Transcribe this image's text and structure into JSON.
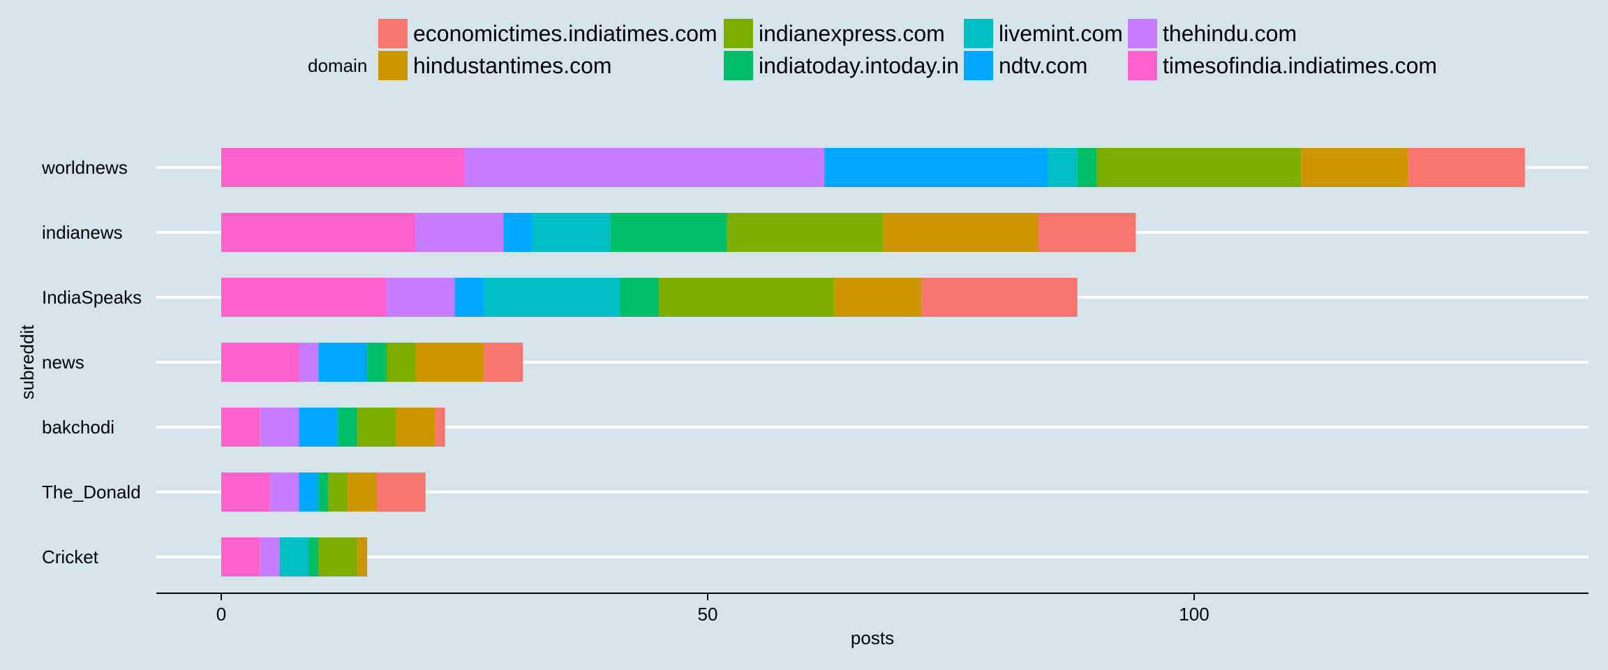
{
  "chart_data": {
    "type": "bar",
    "orientation": "horizontal",
    "stacked": true,
    "xlabel": "posts",
    "ylabel": "subreddit",
    "xlim": [
      -6.6,
      140.4
    ],
    "xticks": [
      0,
      50,
      100
    ],
    "grid": "horizontal major lines",
    "legend": {
      "title": "domain",
      "placement": "top"
    },
    "categories": [
      "worldnews",
      "indianews",
      "IndiaSpeaks",
      "news",
      "bakchodi",
      "The_Donald",
      "Cricket"
    ],
    "series": [
      {
        "name": "economictimes.indiatimes.com",
        "color": "#F8766D",
        "values": [
          12,
          10,
          16,
          4,
          1,
          5,
          0
        ]
      },
      {
        "name": "hindustantimes.com",
        "color": "#CD9600",
        "values": [
          11,
          16,
          9,
          7,
          4,
          3,
          1
        ]
      },
      {
        "name": "indianexpress.com",
        "color": "#7CAE00",
        "values": [
          21,
          16,
          18,
          3,
          4,
          2,
          4
        ]
      },
      {
        "name": "indiatoday.intoday.in",
        "color": "#00BE67",
        "values": [
          2,
          12,
          4,
          2,
          2,
          1,
          1
        ]
      },
      {
        "name": "livemint.com",
        "color": "#00BFC4",
        "values": [
          3,
          8,
          14,
          0,
          0,
          0,
          3
        ]
      },
      {
        "name": "ndtv.com",
        "color": "#00A9FF",
        "values": [
          23,
          3,
          3,
          5,
          4,
          2,
          0
        ]
      },
      {
        "name": "thehindu.com",
        "color": "#C77CFF",
        "values": [
          37,
          9,
          7,
          2,
          4,
          3,
          2
        ]
      },
      {
        "name": "timesofindia.indiatimes.com",
        "color": "#FF61CC",
        "values": [
          25,
          20,
          17,
          8,
          4,
          5,
          4
        ]
      }
    ]
  }
}
